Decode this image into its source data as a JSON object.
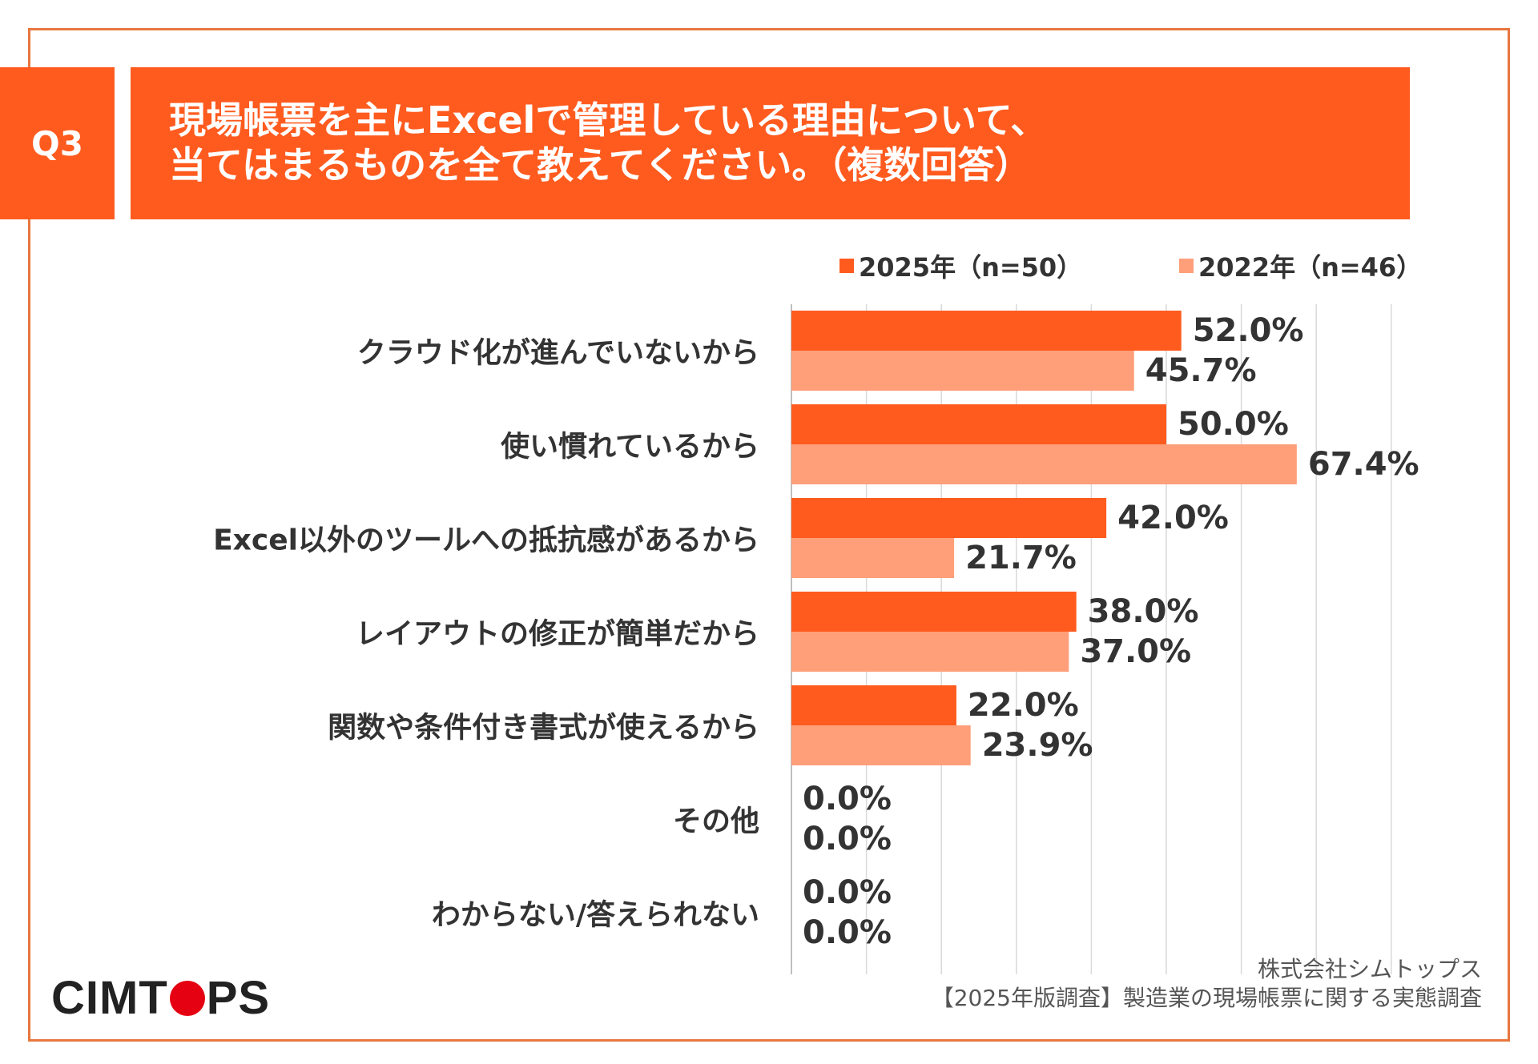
{
  "question_number": "Q3",
  "title_lines": [
    "現場帳票を主にExcelで管理している理由について、",
    "当てはまるものを全て教えてください。（複数回答）"
  ],
  "chart_data": {
    "type": "bar",
    "orientation": "horizontal",
    "categories": [
      "クラウド化が進んでいないから",
      "使い慣れているから",
      "Excel以外のツールへの抵抗感があるから",
      "レイアウトの修正が簡単だから",
      "関数や条件付き書式が使えるから",
      "その他",
      "わからない/答えられない"
    ],
    "series": [
      {
        "name": "2025年（n=50）",
        "color": "#ff5b1f",
        "values": [
          52.0,
          50.0,
          42.0,
          38.0,
          22.0,
          0.0,
          0.0
        ],
        "labels": [
          "52.0%",
          "50.0%",
          "42.0%",
          "38.0%",
          "22.0%",
          "0.0%",
          "0.0%"
        ]
      },
      {
        "name": "2022年（n=46）",
        "color": "#ff9f7a",
        "values": [
          45.7,
          67.4,
          21.7,
          37.0,
          23.9,
          0.0,
          0.0
        ],
        "labels": [
          "45.7%",
          "67.4%",
          "21.7%",
          "37.0%",
          "23.9%",
          "0.0%",
          "0.0%"
        ]
      }
    ],
    "xlim": [
      0,
      80
    ],
    "grid": true,
    "legend": "top-right"
  },
  "footer": {
    "logo_text": "CIMTOPS",
    "source_lines": [
      "株式会社シムトップス",
      "【2025年版調査】製造業の現場帳票に関する実態調査"
    ]
  }
}
